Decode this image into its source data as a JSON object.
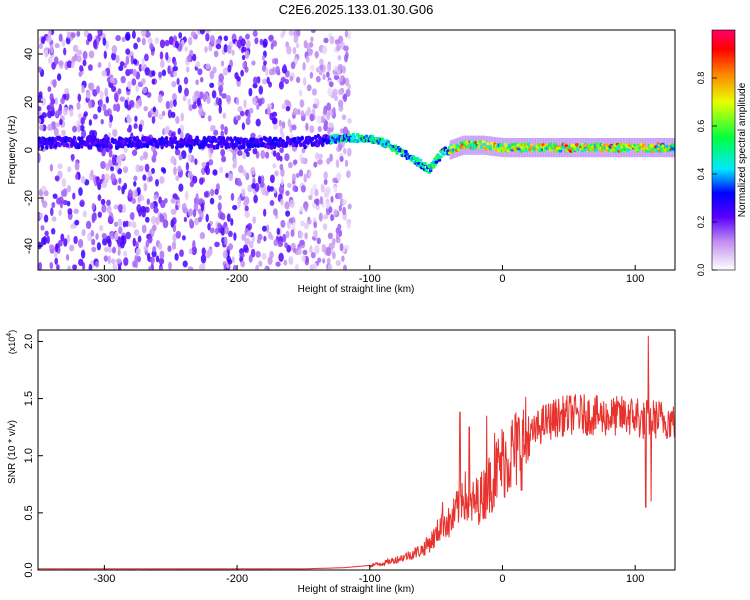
{
  "title": "C2E6.2025.133.01.30.G06",
  "chart_data": [
    {
      "type": "heatmap",
      "xlabel": "Height of straight line (km)",
      "ylabel": "Frequency (Hz)",
      "xlim": [
        -350,
        130
      ],
      "ylim": [
        -50,
        50
      ],
      "xticks": [
        "-300",
        "-200",
        "-100",
        "0",
        "100"
      ],
      "yticks": [
        "-40",
        "-20",
        "0",
        "20",
        "40"
      ],
      "colorbar": {
        "label": "Normalized spectral amplitude",
        "range": [
          0.0,
          1.0
        ],
        "ticks": [
          "0.0",
          "0.2",
          "0.4",
          "0.6",
          "0.8"
        ]
      },
      "ridge": {
        "description_points_x": [
          -340,
          -300,
          -250,
          -200,
          -150,
          -120,
          -100,
          -85,
          -70,
          -55,
          -45,
          -30,
          -15,
          0,
          25,
          50,
          75,
          100,
          130
        ],
        "description_points_y": [
          3,
          3,
          3,
          3,
          3,
          5,
          5,
          2,
          -3,
          -8,
          -1,
          2,
          2,
          1,
          1,
          1,
          1,
          1,
          1
        ]
      }
    },
    {
      "type": "line",
      "xlabel": "Height of straight line (km)",
      "ylabel": "SNR (10 * v/v)",
      "y_multiplier": "(x10",
      "y_multiplier_exp": "4",
      "y_multiplier_close": ")",
      "xlim": [
        -350,
        130
      ],
      "ylim": [
        0,
        2.1
      ],
      "xticks": [
        "-300",
        "-200",
        "-100",
        "0",
        "100"
      ],
      "yticks": [
        "0.0",
        "0.5",
        "1.0",
        "1.5",
        "2.0"
      ],
      "color": "#e8322e",
      "series": [
        {
          "x": [
            -350,
            -300,
            -250,
            -200,
            -150,
            -120,
            -100,
            -90,
            -80,
            -70,
            -60,
            -50,
            -45,
            -40,
            -35,
            -30,
            -25,
            -20,
            -15,
            -10,
            -5,
            0,
            10,
            20,
            30,
            40,
            50,
            60,
            70,
            80,
            90,
            100,
            105,
            110,
            115,
            120,
            130
          ],
          "values": [
            0.01,
            0.01,
            0.01,
            0.01,
            0.01,
            0.02,
            0.04,
            0.06,
            0.09,
            0.13,
            0.18,
            0.3,
            0.45,
            0.4,
            0.5,
            0.7,
            0.55,
            0.6,
            0.65,
            0.75,
            0.85,
            0.95,
            1.05,
            1.15,
            1.28,
            1.33,
            1.36,
            1.36,
            1.35,
            1.34,
            1.35,
            1.34,
            1.3,
            1.33,
            1.32,
            1.32,
            1.3
          ]
        }
      ]
    }
  ]
}
